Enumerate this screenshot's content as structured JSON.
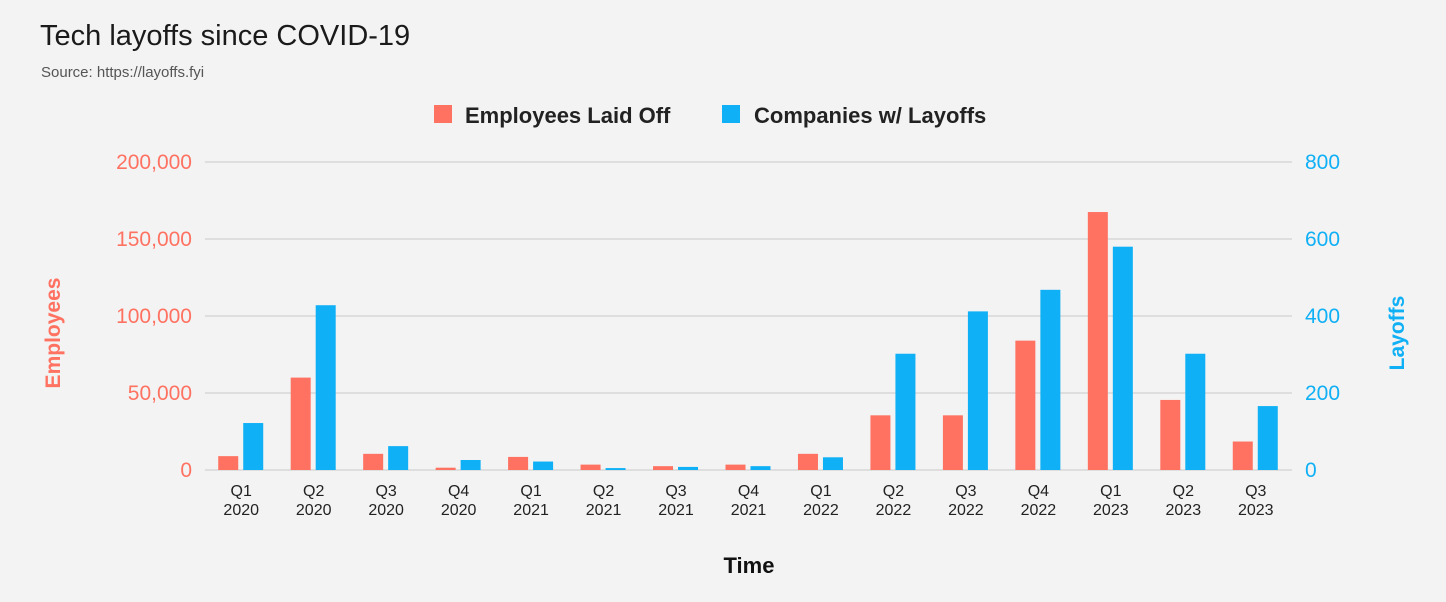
{
  "header": {
    "title": "Tech layoffs since COVID-19",
    "subtitle": "Source: https://layoffs.fyi"
  },
  "colors": {
    "employees": "#ff7262",
    "companies": "#0fb0f5",
    "grid": "#c8c8c8"
  },
  "chart_data": {
    "type": "bar",
    "title": "Tech layoffs since COVID-19",
    "subtitle": "Source: https://layoffs.fyi",
    "xlabel": "Time",
    "ylabel_left": "Employees",
    "ylabel_right": "Layoffs",
    "categories": [
      [
        "Q1",
        "2020"
      ],
      [
        "Q2",
        "2020"
      ],
      [
        "Q3",
        "2020"
      ],
      [
        "Q4",
        "2020"
      ],
      [
        "Q1",
        "2021"
      ],
      [
        "Q2",
        "2021"
      ],
      [
        "Q3",
        "2021"
      ],
      [
        "Q4",
        "2021"
      ],
      [
        "Q1",
        "2022"
      ],
      [
        "Q2",
        "2022"
      ],
      [
        "Q3",
        "2022"
      ],
      [
        "Q4",
        "2022"
      ],
      [
        "Q1",
        "2023"
      ],
      [
        "Q2",
        "2023"
      ],
      [
        "Q3",
        "2023"
      ]
    ],
    "series": [
      {
        "name": "Employees Laid Off",
        "axis": "left",
        "values": [
          9000,
          60000,
          10500,
          1500,
          8500,
          3500,
          2500,
          3500,
          10500,
          35500,
          35500,
          84000,
          167500,
          45500,
          18500
        ]
      },
      {
        "name": "Companies w/ Layoffs",
        "axis": "right",
        "values": [
          122,
          428,
          62,
          26,
          22,
          5,
          8,
          10,
          33,
          302,
          412,
          468,
          580,
          302,
          166
        ]
      }
    ],
    "ylim_left": [
      0,
      200000
    ],
    "ylim_right": [
      0,
      800
    ],
    "yticks_left": [
      "0",
      "50,000",
      "100,000",
      "150,000",
      "200,000"
    ],
    "yticks_right": [
      "0",
      "200",
      "400",
      "600",
      "800"
    ],
    "legend_position": "top-center",
    "grid": true
  }
}
